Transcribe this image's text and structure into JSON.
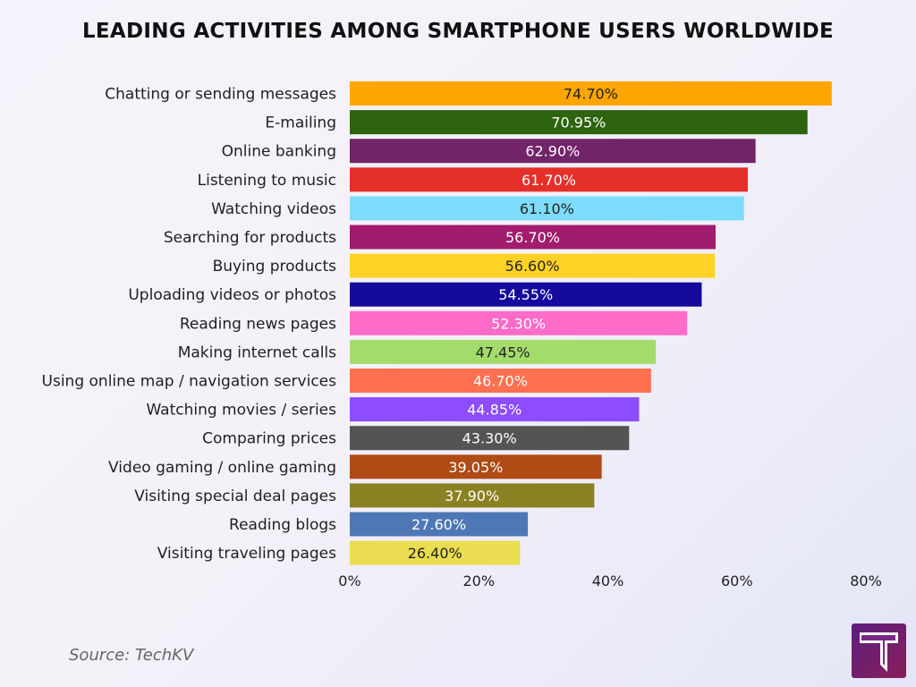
{
  "title": "LEADING ACTIVITIES AMONG SMARTPHONE USERS WORLDWIDE",
  "source": "Source: TechKV",
  "logo_icon": "techkv-logo-icon",
  "chart_data": {
    "type": "bar",
    "orientation": "horizontal",
    "title": "LEADING ACTIVITIES AMONG SMARTPHONE USERS WORLDWIDE",
    "xlabel": "",
    "ylabel": "",
    "xlim": [
      0,
      80
    ],
    "xticks": [
      "0%",
      "20%",
      "40%",
      "60%",
      "80%"
    ],
    "grid": false,
    "legend": "none",
    "categories": [
      "Chatting or sending messages",
      "E-mailing",
      "Online banking",
      "Listening to music",
      "Watching videos",
      "Searching for products",
      "Buying products",
      "Uploading videos or photos",
      "Reading news pages",
      "Making internet calls",
      "Using online map / navigation services",
      "Watching movies / series",
      "Comparing prices",
      "Video gaming / online gaming",
      "Visiting special deal pages",
      "Reading blogs",
      "Visiting traveling pages"
    ],
    "values": [
      74.7,
      70.95,
      62.9,
      61.7,
      61.1,
      56.7,
      56.6,
      54.55,
      52.3,
      47.45,
      46.7,
      44.85,
      43.3,
      39.05,
      37.9,
      27.6,
      26.4
    ],
    "value_labels": [
      "74.70%",
      "70.95%",
      "62.90%",
      "61.70%",
      "61.10%",
      "56.70%",
      "56.60%",
      "54.55%",
      "52.30%",
      "47.45%",
      "46.70%",
      "44.85%",
      "43.30%",
      "39.05%",
      "37.90%",
      "27.60%",
      "26.40%"
    ],
    "colors": [
      "#FFA500",
      "#2E6410",
      "#722469",
      "#E5302A",
      "#7DDCFB",
      "#A11C6C",
      "#FFD225",
      "#160A9E",
      "#FF6BC8",
      "#A4DC6B",
      "#FF7050",
      "#8E4CFF",
      "#545454",
      "#AF4B15",
      "#8B8022",
      "#4E77B5",
      "#EADD52"
    ],
    "label_colors": [
      "#222222",
      "#ffffff",
      "#ffffff",
      "#ffffff",
      "#222222",
      "#ffffff",
      "#222222",
      "#ffffff",
      "#ffffff",
      "#222222",
      "#ffffff",
      "#ffffff",
      "#ffffff",
      "#ffffff",
      "#ffffff",
      "#ffffff",
      "#222222"
    ]
  }
}
